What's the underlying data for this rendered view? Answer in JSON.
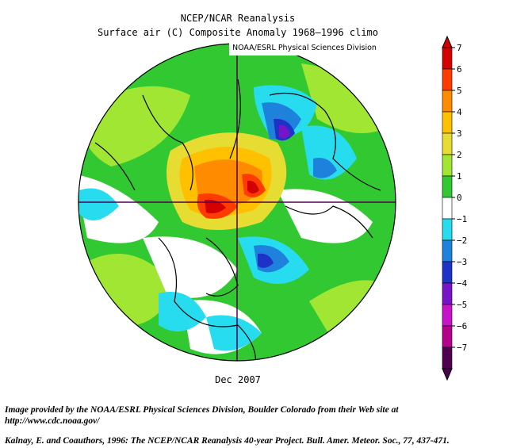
{
  "header": {
    "title": "NCEP/NCAR Reanalysis",
    "subtitle": "Surface air (C) Composite Anomaly 1968–1996 climo",
    "provider_label": "NOAA/ESRL Physical Sciences Division"
  },
  "map": {
    "projection": "north-polar-stereographic",
    "date_label": "Dec 2007",
    "variable": "surface air temperature anomaly",
    "units": "C"
  },
  "colorbar": {
    "ticks": [
      "7",
      "6",
      "5",
      "4",
      "3",
      "2",
      "1",
      "0",
      "−1",
      "−2",
      "−3",
      "−4",
      "−5",
      "−6",
      "−7"
    ],
    "bins": [
      {
        "label": "6 to 7",
        "color": "#d40000"
      },
      {
        "label": "5 to 6",
        "color": "#ff3c00"
      },
      {
        "label": "4 to 5",
        "color": "#ff8c00"
      },
      {
        "label": "3 to 4",
        "color": "#ffc000"
      },
      {
        "label": "2 to 3",
        "color": "#e6dc32"
      },
      {
        "label": "1 to 2",
        "color": "#a0e632"
      },
      {
        "label": "0 to 1",
        "color": "#32c832"
      },
      {
        "label": "-1 to 0",
        "color": "#ffffff"
      },
      {
        "label": "-2 to -1",
        "color": "#28dcf0"
      },
      {
        "label": "-3 to -2",
        "color": "#1e82dc"
      },
      {
        "label": "-4 to -3",
        "color": "#1e32c8"
      },
      {
        "label": "-5 to -4",
        "color": "#7814c8"
      },
      {
        "label": "-6 to -5",
        "color": "#c814c8"
      },
      {
        "label": "-7 to -6",
        "color": "#b4008c"
      },
      {
        "label": "below -7",
        "color": "#500050"
      }
    ]
  },
  "footer": {
    "credit": "Image provided by the NOAA/ESRL Physical Sciences Division, Boulder Colorado from their Web site at http://www.cdc.noaa.gov/",
    "citation": "Kalnay, E. and Coauthors, 1996: The NCEP/NCAR Reanalysis 40-year Project. Bull. Amer. Meteor. Soc., 77, 437-471."
  },
  "colors": {
    "background": "#ffffff",
    "coastline": "#000000",
    "grid": "#500050"
  }
}
